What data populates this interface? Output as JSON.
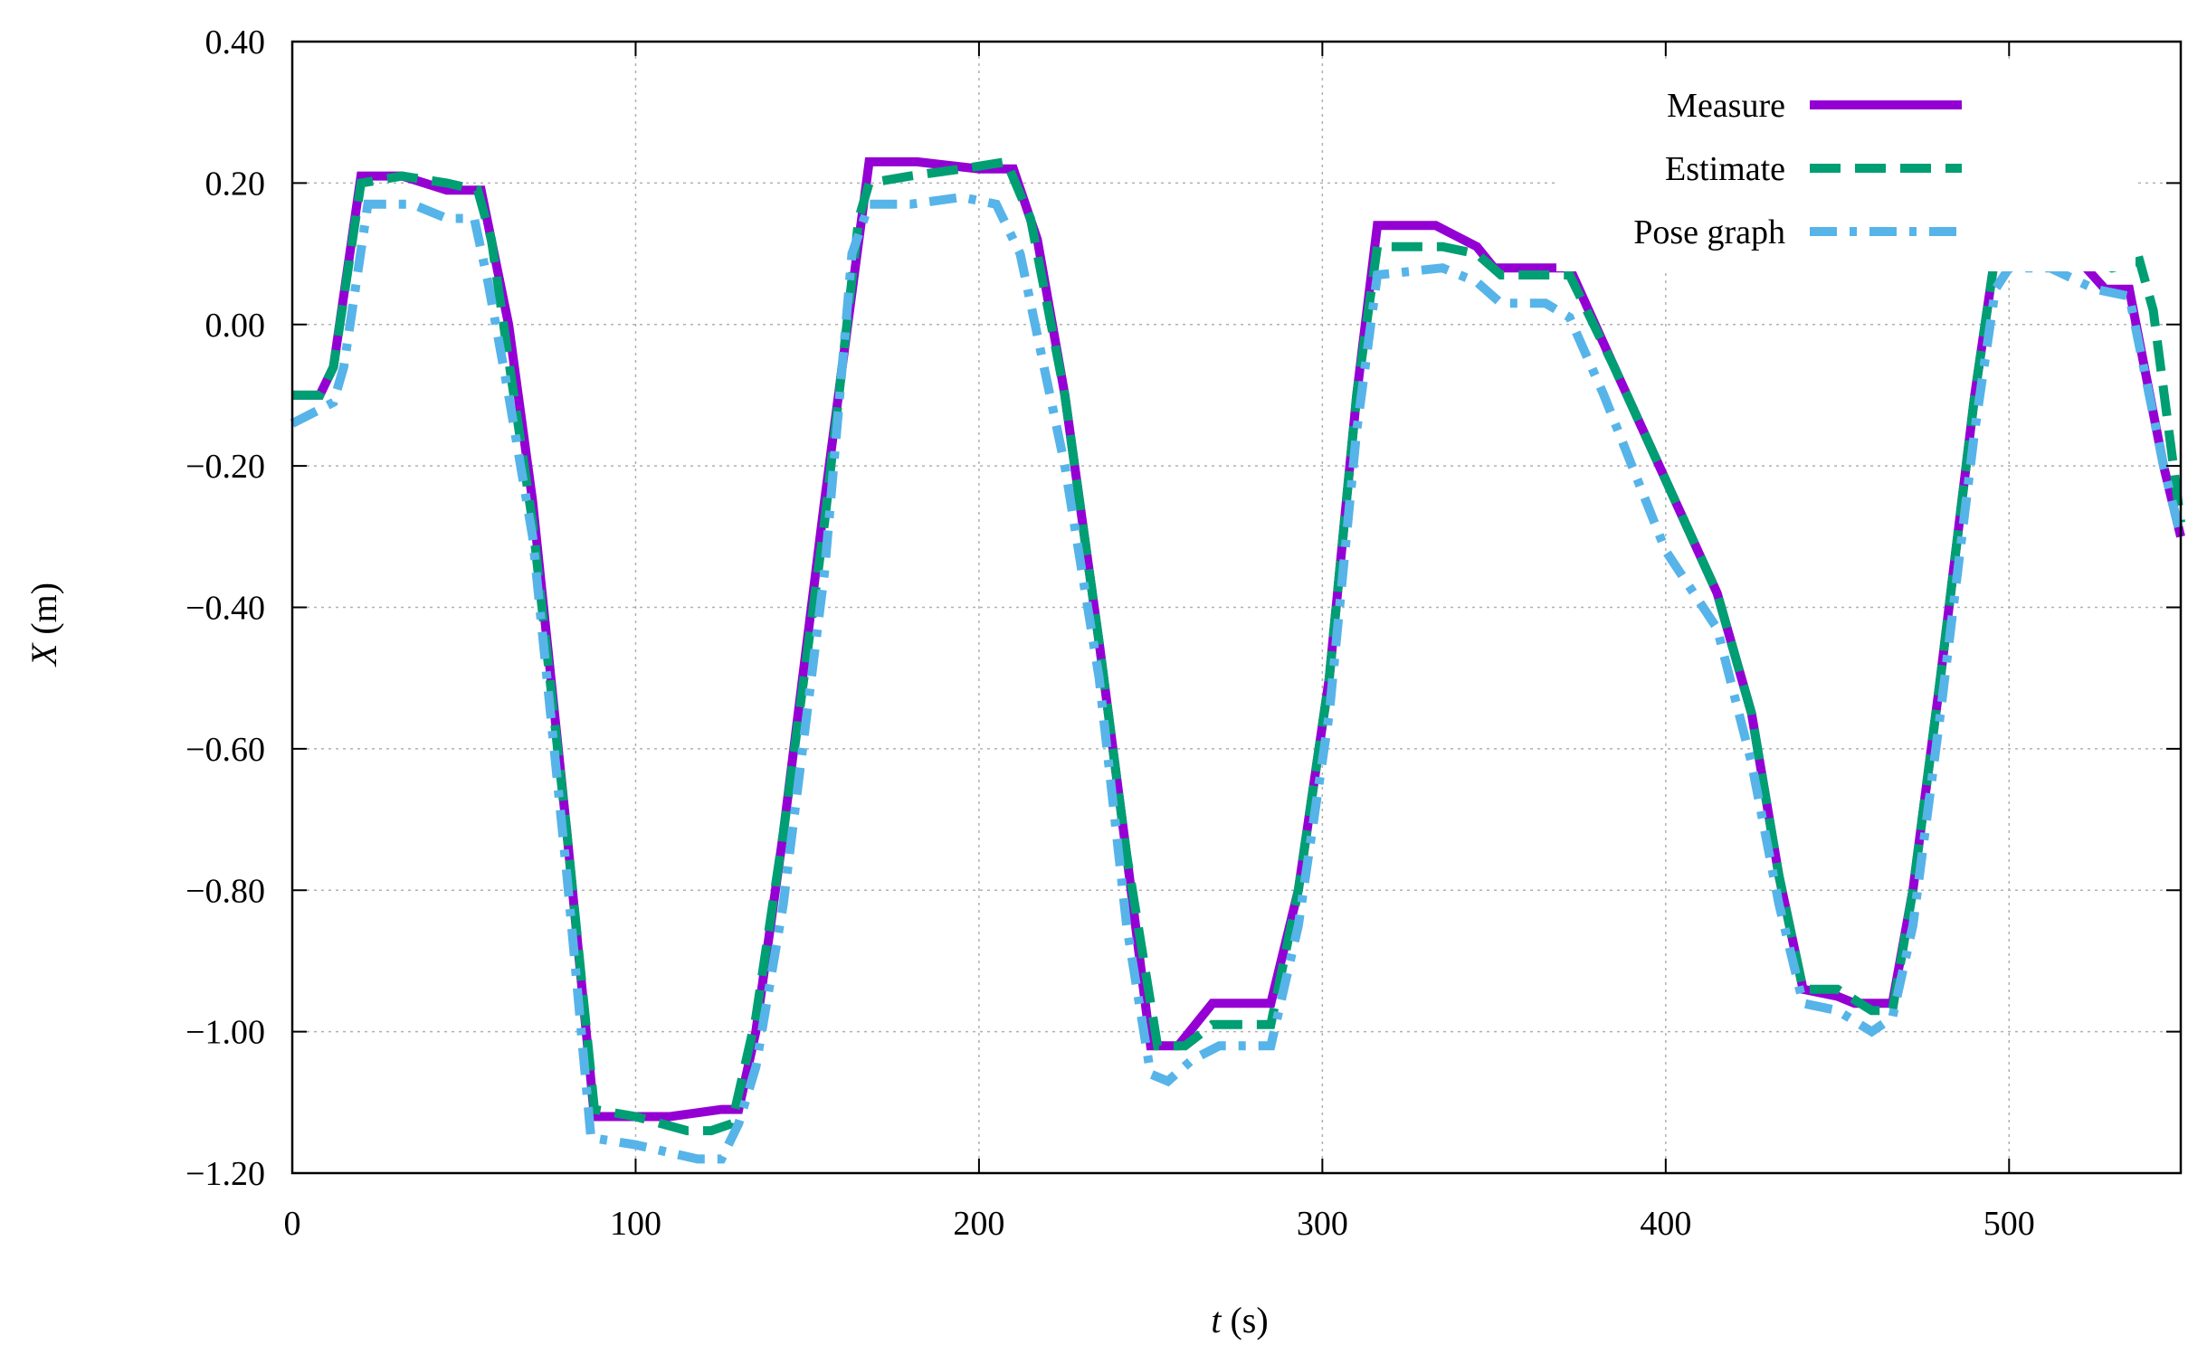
{
  "chart_data": {
    "type": "line",
    "title": "",
    "xlabel": {
      "var": "t",
      "unit": " (s)"
    },
    "ylabel": {
      "var": "X",
      "unit": " (m)"
    },
    "xlim": [
      0,
      550
    ],
    "ylim": [
      -1.2,
      0.4
    ],
    "xticks": [
      "0",
      "100",
      "200",
      "300",
      "400",
      "500"
    ],
    "xtick_values": [
      0,
      100,
      200,
      300,
      400,
      500
    ],
    "yticks": [
      "0.40",
      "0.20",
      "0.00",
      "−0.20",
      "−0.40",
      "−0.60",
      "−0.80",
      "−1.00",
      "−1.20"
    ],
    "ytick_values": [
      0.4,
      0.2,
      0.0,
      -0.2,
      -0.4,
      -0.6,
      -0.8,
      -1.0,
      -1.2
    ],
    "grid": true,
    "legend_position": "top-right",
    "series": [
      {
        "name": "Measure",
        "color": "#9400d3",
        "style": "solid",
        "points": [
          [
            0,
            -0.1
          ],
          [
            8,
            -0.1
          ],
          [
            12,
            -0.06
          ],
          [
            20,
            0.21
          ],
          [
            32,
            0.21
          ],
          [
            45,
            0.19
          ],
          [
            55,
            0.19
          ],
          [
            63,
            0.0
          ],
          [
            70,
            -0.25
          ],
          [
            80,
            -0.72
          ],
          [
            88,
            -1.12
          ],
          [
            110,
            -1.12
          ],
          [
            125,
            -1.11
          ],
          [
            130,
            -1.11
          ],
          [
            135,
            -1.0
          ],
          [
            143,
            -0.72
          ],
          [
            155,
            -0.25
          ],
          [
            168,
            0.23
          ],
          [
            182,
            0.23
          ],
          [
            200,
            0.22
          ],
          [
            210,
            0.22
          ],
          [
            217,
            0.12
          ],
          [
            225,
            -0.1
          ],
          [
            235,
            -0.45
          ],
          [
            243,
            -0.75
          ],
          [
            250,
            -1.02
          ],
          [
            258,
            -1.02
          ],
          [
            268,
            -0.96
          ],
          [
            285,
            -0.96
          ],
          [
            293,
            -0.8
          ],
          [
            302,
            -0.5
          ],
          [
            310,
            -0.1
          ],
          [
            316,
            0.14
          ],
          [
            333,
            0.14
          ],
          [
            345,
            0.11
          ],
          [
            350,
            0.08
          ],
          [
            372,
            0.08
          ],
          [
            385,
            -0.06
          ],
          [
            400,
            -0.22
          ],
          [
            415,
            -0.38
          ],
          [
            425,
            -0.55
          ],
          [
            433,
            -0.78
          ],
          [
            440,
            -0.94
          ],
          [
            450,
            -0.95
          ],
          [
            455,
            -0.96
          ],
          [
            466,
            -0.96
          ],
          [
            472,
            -0.8
          ],
          [
            480,
            -0.5
          ],
          [
            490,
            -0.1
          ],
          [
            496,
            0.1
          ],
          [
            500,
            0.12
          ],
          [
            515,
            0.12
          ],
          [
            528,
            0.05
          ],
          [
            535,
            0.05
          ],
          [
            545,
            -0.2
          ],
          [
            550,
            -0.3
          ]
        ]
      },
      {
        "name": "Estimate",
        "color": "#009e73",
        "style": "dashed",
        "points": [
          [
            0,
            -0.1
          ],
          [
            8,
            -0.1
          ],
          [
            12,
            -0.06
          ],
          [
            20,
            0.2
          ],
          [
            32,
            0.21
          ],
          [
            45,
            0.2
          ],
          [
            54,
            0.19
          ],
          [
            58,
            0.12
          ],
          [
            63,
            -0.05
          ],
          [
            70,
            -0.28
          ],
          [
            80,
            -0.72
          ],
          [
            88,
            -1.11
          ],
          [
            100,
            -1.12
          ],
          [
            115,
            -1.14
          ],
          [
            122,
            -1.14
          ],
          [
            128,
            -1.13
          ],
          [
            135,
            -0.98
          ],
          [
            143,
            -0.72
          ],
          [
            155,
            -0.28
          ],
          [
            165,
            0.15
          ],
          [
            168,
            0.2
          ],
          [
            180,
            0.21
          ],
          [
            195,
            0.22
          ],
          [
            208,
            0.23
          ],
          [
            215,
            0.15
          ],
          [
            225,
            -0.1
          ],
          [
            235,
            -0.45
          ],
          [
            243,
            -0.75
          ],
          [
            252,
            -1.02
          ],
          [
            260,
            -1.02
          ],
          [
            268,
            -0.99
          ],
          [
            285,
            -0.99
          ],
          [
            293,
            -0.8
          ],
          [
            302,
            -0.5
          ],
          [
            310,
            -0.1
          ],
          [
            316,
            0.11
          ],
          [
            335,
            0.11
          ],
          [
            345,
            0.1
          ],
          [
            352,
            0.07
          ],
          [
            372,
            0.07
          ],
          [
            385,
            -0.06
          ],
          [
            400,
            -0.22
          ],
          [
            415,
            -0.38
          ],
          [
            425,
            -0.55
          ],
          [
            433,
            -0.78
          ],
          [
            440,
            -0.94
          ],
          [
            450,
            -0.94
          ],
          [
            460,
            -0.97
          ],
          [
            466,
            -0.97
          ],
          [
            472,
            -0.8
          ],
          [
            480,
            -0.5
          ],
          [
            490,
            -0.1
          ],
          [
            496,
            0.1
          ],
          [
            500,
            0.11
          ],
          [
            515,
            0.11
          ],
          [
            530,
            0.08
          ],
          [
            538,
            0.09
          ],
          [
            542,
            0.02
          ],
          [
            550,
            -0.28
          ]
        ]
      },
      {
        "name": "Pose graph",
        "color": "#56b4e9",
        "style": "dashdot",
        "points": [
          [
            0,
            -0.14
          ],
          [
            8,
            -0.12
          ],
          [
            12,
            -0.11
          ],
          [
            15,
            -0.06
          ],
          [
            22,
            0.17
          ],
          [
            35,
            0.17
          ],
          [
            45,
            0.15
          ],
          [
            53,
            0.15
          ],
          [
            57,
            0.06
          ],
          [
            63,
            -0.1
          ],
          [
            70,
            -0.3
          ],
          [
            80,
            -0.78
          ],
          [
            87,
            -1.15
          ],
          [
            100,
            -1.16
          ],
          [
            118,
            -1.18
          ],
          [
            125,
            -1.18
          ],
          [
            130,
            -1.13
          ],
          [
            135,
            -1.05
          ],
          [
            143,
            -0.82
          ],
          [
            155,
            -0.35
          ],
          [
            163,
            0.1
          ],
          [
            168,
            0.17
          ],
          [
            180,
            0.17
          ],
          [
            195,
            0.18
          ],
          [
            205,
            0.17
          ],
          [
            212,
            0.1
          ],
          [
            225,
            -0.2
          ],
          [
            235,
            -0.5
          ],
          [
            243,
            -0.85
          ],
          [
            250,
            -1.06
          ],
          [
            255,
            -1.07
          ],
          [
            262,
            -1.04
          ],
          [
            270,
            -1.02
          ],
          [
            285,
            -1.02
          ],
          [
            293,
            -0.85
          ],
          [
            302,
            -0.55
          ],
          [
            310,
            -0.15
          ],
          [
            316,
            0.07
          ],
          [
            335,
            0.08
          ],
          [
            345,
            0.06
          ],
          [
            352,
            0.03
          ],
          [
            365,
            0.03
          ],
          [
            372,
            0.01
          ],
          [
            382,
            -0.1
          ],
          [
            400,
            -0.32
          ],
          [
            415,
            -0.43
          ],
          [
            425,
            -0.62
          ],
          [
            433,
            -0.82
          ],
          [
            440,
            -0.96
          ],
          [
            450,
            -0.97
          ],
          [
            460,
            -1.0
          ],
          [
            466,
            -0.98
          ],
          [
            472,
            -0.85
          ],
          [
            480,
            -0.55
          ],
          [
            490,
            -0.15
          ],
          [
            496,
            0.05
          ],
          [
            500,
            0.08
          ],
          [
            512,
            0.08
          ],
          [
            525,
            0.05
          ],
          [
            535,
            0.04
          ],
          [
            545,
            -0.2
          ],
          [
            550,
            -0.3
          ]
        ]
      }
    ]
  }
}
